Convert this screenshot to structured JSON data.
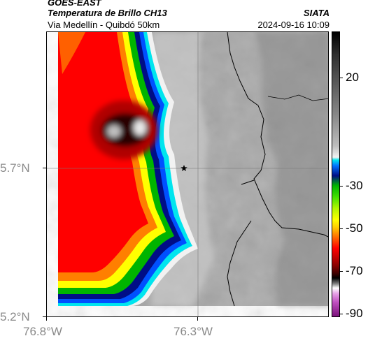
{
  "header": {
    "satellite": "GOES-EAST",
    "product": "Temperatura de Brillo CH13",
    "subtitle": "Via Medellín - Quibdó 50km",
    "organization": "SIATA",
    "datetime": "2024-09-16 10:09"
  },
  "axes": {
    "lon_ticks": [
      "76.8°W",
      "76.3°W"
    ],
    "lat_ticks": [
      "5.7°N",
      "5.2°N"
    ]
  },
  "colorbar": {
    "ticks": [
      "20",
      "-30",
      "-50",
      "-70",
      "-90"
    ]
  },
  "map": {
    "marker": "star-icon",
    "colors": {
      "cold_core": "#3a0000",
      "red": "#ff0000",
      "orange": "#ff7f00",
      "yellow": "#ffff00",
      "green": "#00b400",
      "blue": "#0050ff",
      "navy": "#000d86",
      "cyan": "#00e5ee",
      "ground": "#a6a6a6"
    }
  }
}
